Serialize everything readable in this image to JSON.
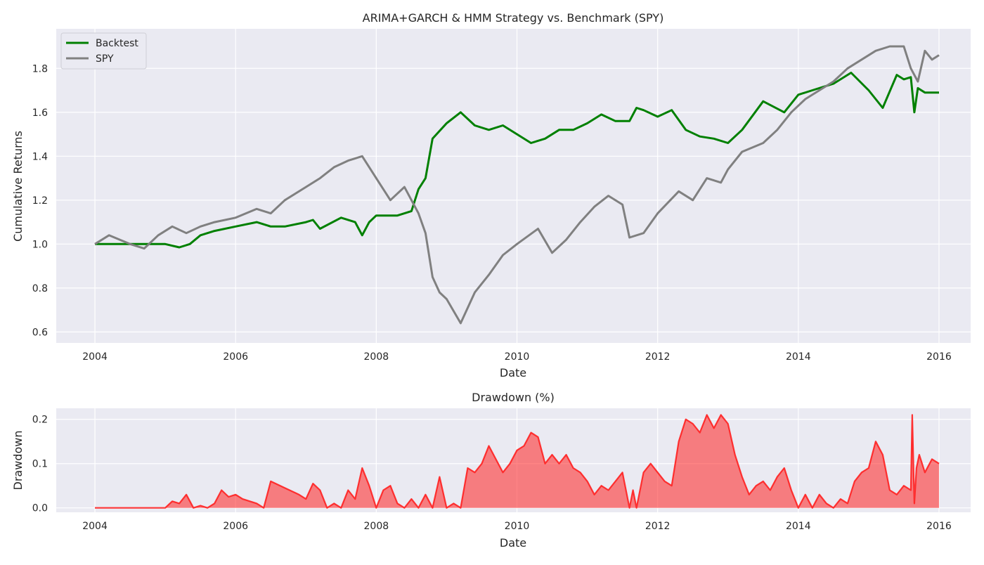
{
  "chart_data": [
    {
      "type": "line",
      "title": "ARIMA+GARCH & HMM Strategy vs. Benchmark (SPY)",
      "xlabel": "Date",
      "ylabel": "Cumulative Returns",
      "xlim": [
        2003.45,
        2016.45
      ],
      "ylim": [
        0.55,
        1.98
      ],
      "xticks": [
        2004,
        2006,
        2008,
        2010,
        2012,
        2014,
        2016
      ],
      "yticks": [
        0.6,
        0.8,
        1.0,
        1.2,
        1.4,
        1.6,
        1.8
      ],
      "ytick_labels": [
        "0.6",
        "0.8",
        "1.0",
        "1.2",
        "1.4",
        "1.6",
        "1.8"
      ],
      "grid": true,
      "legend": "upper-left",
      "series": [
        {
          "name": "Backtest",
          "color": "#008000",
          "x": [
            2004.0,
            2004.5,
            2005.0,
            2005.2,
            2005.35,
            2005.5,
            2005.7,
            2006.0,
            2006.3,
            2006.5,
            2006.7,
            2007.0,
            2007.1,
            2007.2,
            2007.5,
            2007.7,
            2007.8,
            2007.9,
            2008.0,
            2008.3,
            2008.5,
            2008.6,
            2008.7,
            2008.8,
            2009.0,
            2009.2,
            2009.4,
            2009.6,
            2009.8,
            2010.0,
            2010.2,
            2010.4,
            2010.6,
            2010.8,
            2011.0,
            2011.2,
            2011.4,
            2011.6,
            2011.7,
            2011.8,
            2012.0,
            2012.2,
            2012.4,
            2012.6,
            2012.8,
            2013.0,
            2013.2,
            2013.5,
            2013.8,
            2014.0,
            2014.2,
            2014.5,
            2014.75,
            2015.0,
            2015.2,
            2015.4,
            2015.5,
            2015.6,
            2015.65,
            2015.7,
            2015.8,
            2016.0
          ],
          "values": [
            1.0,
            1.0,
            1.0,
            0.985,
            1.0,
            1.04,
            1.06,
            1.08,
            1.1,
            1.08,
            1.08,
            1.1,
            1.11,
            1.07,
            1.12,
            1.1,
            1.04,
            1.1,
            1.13,
            1.13,
            1.15,
            1.25,
            1.3,
            1.48,
            1.55,
            1.6,
            1.54,
            1.52,
            1.54,
            1.5,
            1.46,
            1.48,
            1.52,
            1.52,
            1.55,
            1.59,
            1.56,
            1.56,
            1.62,
            1.61,
            1.58,
            1.61,
            1.52,
            1.49,
            1.48,
            1.46,
            1.52,
            1.65,
            1.6,
            1.68,
            1.7,
            1.73,
            1.78,
            1.7,
            1.62,
            1.77,
            1.75,
            1.76,
            1.6,
            1.71,
            1.69,
            1.69
          ]
        },
        {
          "name": "SPY",
          "color": "#808080",
          "x": [
            2004.0,
            2004.2,
            2004.5,
            2004.7,
            2004.9,
            2005.1,
            2005.3,
            2005.5,
            2005.7,
            2006.0,
            2006.3,
            2006.5,
            2006.7,
            2007.0,
            2007.2,
            2007.4,
            2007.6,
            2007.8,
            2008.0,
            2008.2,
            2008.4,
            2008.6,
            2008.7,
            2008.8,
            2008.9,
            2009.0,
            2009.2,
            2009.4,
            2009.6,
            2009.8,
            2010.0,
            2010.3,
            2010.5,
            2010.7,
            2010.9,
            2011.1,
            2011.3,
            2011.5,
            2011.6,
            2011.8,
            2012.0,
            2012.3,
            2012.5,
            2012.7,
            2012.9,
            2013.0,
            2013.2,
            2013.5,
            2013.7,
            2013.9,
            2014.1,
            2014.3,
            2014.5,
            2014.7,
            2014.9,
            2015.1,
            2015.3,
            2015.5,
            2015.6,
            2015.7,
            2015.8,
            2015.9,
            2016.0
          ],
          "values": [
            1.0,
            1.04,
            1.0,
            0.98,
            1.04,
            1.08,
            1.05,
            1.08,
            1.1,
            1.12,
            1.16,
            1.14,
            1.2,
            1.26,
            1.3,
            1.35,
            1.38,
            1.4,
            1.3,
            1.2,
            1.26,
            1.14,
            1.05,
            0.85,
            0.78,
            0.75,
            0.64,
            0.78,
            0.86,
            0.95,
            1.0,
            1.07,
            0.96,
            1.02,
            1.1,
            1.17,
            1.22,
            1.18,
            1.03,
            1.05,
            1.14,
            1.24,
            1.2,
            1.3,
            1.28,
            1.34,
            1.42,
            1.46,
            1.52,
            1.6,
            1.66,
            1.7,
            1.74,
            1.8,
            1.84,
            1.88,
            1.9,
            1.9,
            1.8,
            1.74,
            1.88,
            1.84,
            1.86
          ]
        }
      ]
    },
    {
      "type": "area",
      "title": "Drawdown (%)",
      "xlabel": "Date",
      "ylabel": "Drawdown",
      "xlim": [
        2003.45,
        2016.45
      ],
      "ylim": [
        -0.01,
        0.225
      ],
      "xticks": [
        2004,
        2006,
        2008,
        2010,
        2012,
        2014,
        2016
      ],
      "yticks": [
        0.0,
        0.1,
        0.2
      ],
      "ytick_labels": [
        "0.0",
        "0.1",
        "0.2"
      ],
      "grid": true,
      "color": "#ff2020",
      "x": [
        2004.0,
        2004.5,
        2005.0,
        2005.1,
        2005.2,
        2005.3,
        2005.4,
        2005.5,
        2005.6,
        2005.7,
        2005.8,
        2005.9,
        2006.0,
        2006.1,
        2006.3,
        2006.4,
        2006.5,
        2006.7,
        2006.9,
        2007.0,
        2007.1,
        2007.2,
        2007.3,
        2007.4,
        2007.5,
        2007.6,
        2007.7,
        2007.8,
        2007.9,
        2008.0,
        2008.1,
        2008.2,
        2008.3,
        2008.4,
        2008.5,
        2008.6,
        2008.7,
        2008.8,
        2008.9,
        2009.0,
        2009.1,
        2009.2,
        2009.3,
        2009.4,
        2009.5,
        2009.6,
        2009.7,
        2009.8,
        2009.9,
        2010.0,
        2010.1,
        2010.2,
        2010.3,
        2010.4,
        2010.5,
        2010.6,
        2010.7,
        2010.8,
        2010.9,
        2011.0,
        2011.1,
        2011.2,
        2011.3,
        2011.4,
        2011.5,
        2011.6,
        2011.65,
        2011.7,
        2011.8,
        2011.9,
        2012.0,
        2012.1,
        2012.2,
        2012.3,
        2012.4,
        2012.5,
        2012.6,
        2012.7,
        2012.8,
        2012.9,
        2013.0,
        2013.1,
        2013.2,
        2013.3,
        2013.4,
        2013.5,
        2013.6,
        2013.7,
        2013.8,
        2013.9,
        2014.0,
        2014.1,
        2014.2,
        2014.3,
        2014.4,
        2014.5,
        2014.6,
        2014.7,
        2014.8,
        2014.9,
        2015.0,
        2015.1,
        2015.2,
        2015.3,
        2015.4,
        2015.5,
        2015.6,
        2015.62,
        2015.65,
        2015.68,
        2015.72,
        2015.8,
        2015.9,
        2016.0
      ],
      "values": [
        0.0,
        0.0,
        0.0,
        0.015,
        0.01,
        0.03,
        0.0,
        0.005,
        0.0,
        0.01,
        0.04,
        0.025,
        0.03,
        0.02,
        0.01,
        0.0,
        0.06,
        0.045,
        0.03,
        0.02,
        0.055,
        0.04,
        0.0,
        0.01,
        0.0,
        0.04,
        0.02,
        0.09,
        0.05,
        0.0,
        0.04,
        0.05,
        0.01,
        0.0,
        0.02,
        0.0,
        0.03,
        0.0,
        0.07,
        0.0,
        0.01,
        0.0,
        0.09,
        0.08,
        0.1,
        0.14,
        0.11,
        0.08,
        0.1,
        0.13,
        0.14,
        0.17,
        0.16,
        0.1,
        0.12,
        0.1,
        0.12,
        0.09,
        0.08,
        0.06,
        0.03,
        0.05,
        0.04,
        0.06,
        0.08,
        0.0,
        0.04,
        0.0,
        0.08,
        0.1,
        0.08,
        0.06,
        0.05,
        0.15,
        0.2,
        0.19,
        0.17,
        0.21,
        0.18,
        0.21,
        0.19,
        0.12,
        0.07,
        0.03,
        0.05,
        0.06,
        0.04,
        0.07,
        0.09,
        0.04,
        0.0,
        0.03,
        0.0,
        0.03,
        0.01,
        0.0,
        0.02,
        0.01,
        0.06,
        0.08,
        0.09,
        0.15,
        0.12,
        0.04,
        0.03,
        0.05,
        0.04,
        0.21,
        0.01,
        0.09,
        0.12,
        0.08,
        0.11,
        0.1
      ]
    }
  ]
}
